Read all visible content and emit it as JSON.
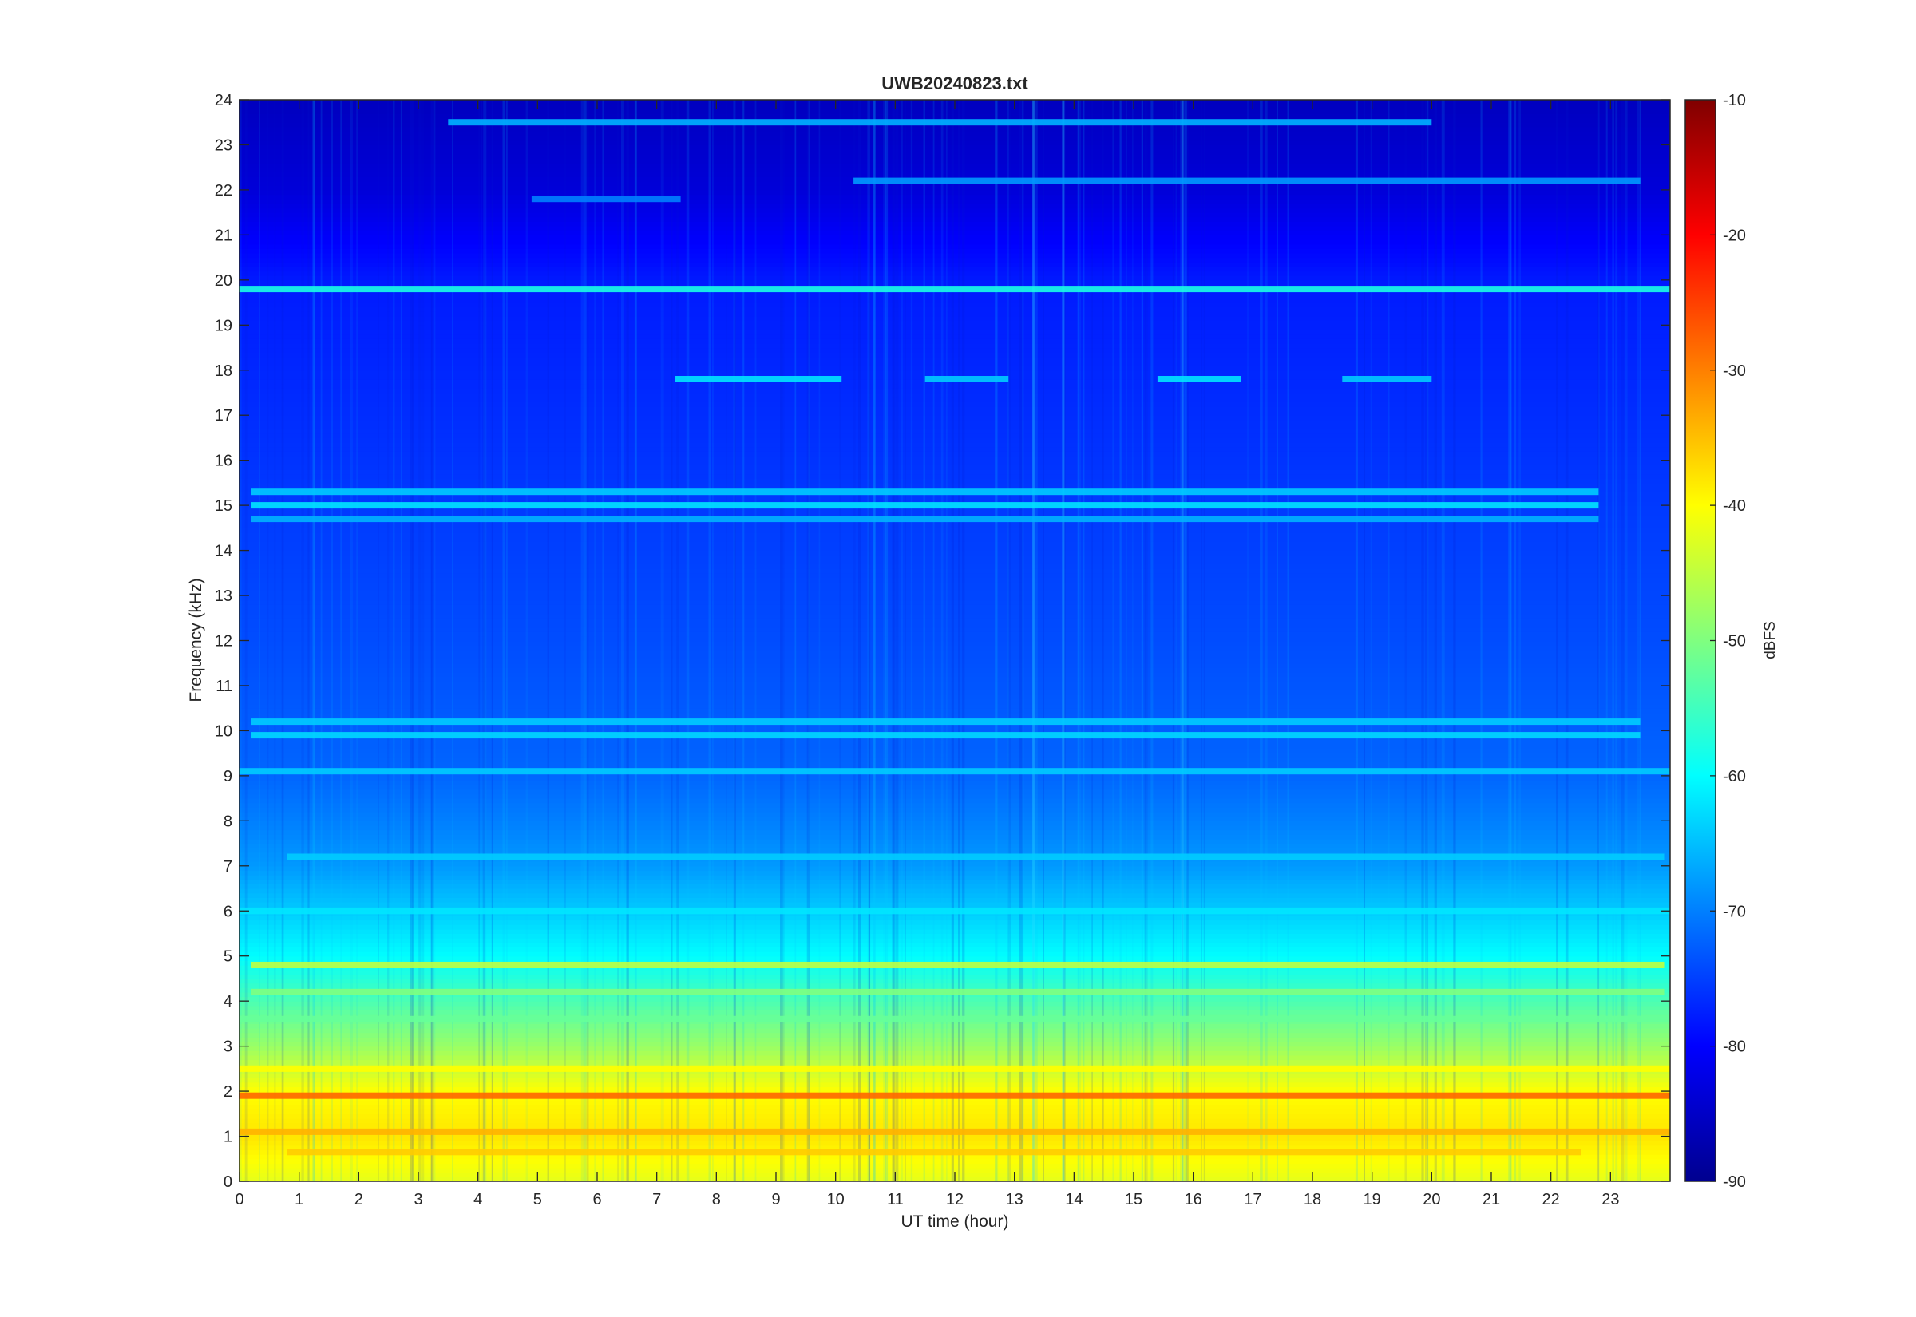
{
  "chart_data": {
    "type": "heatmap",
    "title": "UWB20240823.txt",
    "xlabel": "UT time (hour)",
    "ylabel": "Frequency (kHz)",
    "xlim": [
      0,
      24
    ],
    "ylim": [
      0,
      24
    ],
    "x_ticks": [
      "0",
      "1",
      "2",
      "3",
      "4",
      "5",
      "6",
      "7",
      "8",
      "9",
      "10",
      "11",
      "12",
      "13",
      "14",
      "15",
      "16",
      "17",
      "18",
      "19",
      "20",
      "21",
      "22",
      "23"
    ],
    "y_ticks": [
      "0",
      "1",
      "2",
      "3",
      "4",
      "5",
      "6",
      "7",
      "8",
      "9",
      "10",
      "11",
      "12",
      "13",
      "14",
      "15",
      "16",
      "17",
      "18",
      "19",
      "20",
      "21",
      "22",
      "23",
      "24"
    ],
    "colorbar": {
      "label": "dBFS",
      "colormap": "jet",
      "range": [
        -90,
        -10
      ],
      "ticks": [
        "-10",
        "-20",
        "-30",
        "-40",
        "-50",
        "-60",
        "-70",
        "-80",
        "-90"
      ]
    },
    "noise_floor_profile": [
      {
        "freq_khz": 0,
        "dbfs": -42
      },
      {
        "freq_khz": 1,
        "dbfs": -38
      },
      {
        "freq_khz": 2,
        "dbfs": -40
      },
      {
        "freq_khz": 3,
        "dbfs": -48
      },
      {
        "freq_khz": 4,
        "dbfs": -54
      },
      {
        "freq_khz": 5,
        "dbfs": -60
      },
      {
        "freq_khz": 6,
        "dbfs": -64
      },
      {
        "freq_khz": 7,
        "dbfs": -68
      },
      {
        "freq_khz": 9,
        "dbfs": -72
      },
      {
        "freq_khz": 12,
        "dbfs": -74
      },
      {
        "freq_khz": 16,
        "dbfs": -76
      },
      {
        "freq_khz": 20,
        "dbfs": -78
      },
      {
        "freq_khz": 22,
        "dbfs": -83
      },
      {
        "freq_khz": 24,
        "dbfs": -85
      }
    ],
    "bands": [
      {
        "freq_khz": 19.8,
        "dbfs": -58,
        "t_start": 0,
        "t_end": 24
      },
      {
        "freq_khz": 17.8,
        "dbfs": -62,
        "t_start": 7.3,
        "t_end": 10.1
      },
      {
        "freq_khz": 17.8,
        "dbfs": -64,
        "t_start": 11.5,
        "t_end": 12.9
      },
      {
        "freq_khz": 17.8,
        "dbfs": -62,
        "t_start": 15.4,
        "t_end": 16.8
      },
      {
        "freq_khz": 17.8,
        "dbfs": -64,
        "t_start": 18.5,
        "t_end": 20.0
      },
      {
        "freq_khz": 15.3,
        "dbfs": -64,
        "t_start": 0.2,
        "t_end": 22.8
      },
      {
        "freq_khz": 15.0,
        "dbfs": -62,
        "t_start": 0.2,
        "t_end": 22.8
      },
      {
        "freq_khz": 14.7,
        "dbfs": -66,
        "t_start": 0.2,
        "t_end": 22.8
      },
      {
        "freq_khz": 10.2,
        "dbfs": -64,
        "t_start": 0.2,
        "t_end": 23.5
      },
      {
        "freq_khz": 9.9,
        "dbfs": -63,
        "t_start": 0.2,
        "t_end": 23.5
      },
      {
        "freq_khz": 23.5,
        "dbfs": -66,
        "t_start": 3.5,
        "t_end": 20.0
      },
      {
        "freq_khz": 22.2,
        "dbfs": -68,
        "t_start": 10.3,
        "t_end": 23.5
      },
      {
        "freq_khz": 21.8,
        "dbfs": -70,
        "t_start": 4.9,
        "t_end": 7.4
      },
      {
        "freq_khz": 4.8,
        "dbfs": -45,
        "t_start": 0.2,
        "t_end": 23.9
      },
      {
        "freq_khz": 4.2,
        "dbfs": -50,
        "t_start": 0.2,
        "t_end": 23.9
      },
      {
        "freq_khz": 3.6,
        "dbfs": -52,
        "t_start": 0,
        "t_end": 24
      },
      {
        "freq_khz": 2.5,
        "dbfs": -40,
        "t_start": 0,
        "t_end": 24
      },
      {
        "freq_khz": 1.9,
        "dbfs": -28,
        "t_start": 0,
        "t_end": 24
      },
      {
        "freq_khz": 1.1,
        "dbfs": -34,
        "t_start": 0,
        "t_end": 24
      },
      {
        "freq_khz": 0.65,
        "dbfs": -36,
        "t_start": 0.8,
        "t_end": 22.5
      },
      {
        "freq_khz": 6.0,
        "dbfs": -62,
        "t_start": 0,
        "t_end": 24
      },
      {
        "freq_khz": 7.2,
        "dbfs": -64,
        "t_start": 0.8,
        "t_end": 23.9
      },
      {
        "freq_khz": 9.1,
        "dbfs": -64,
        "t_start": 0,
        "t_end": 24
      }
    ],
    "grid": false
  }
}
